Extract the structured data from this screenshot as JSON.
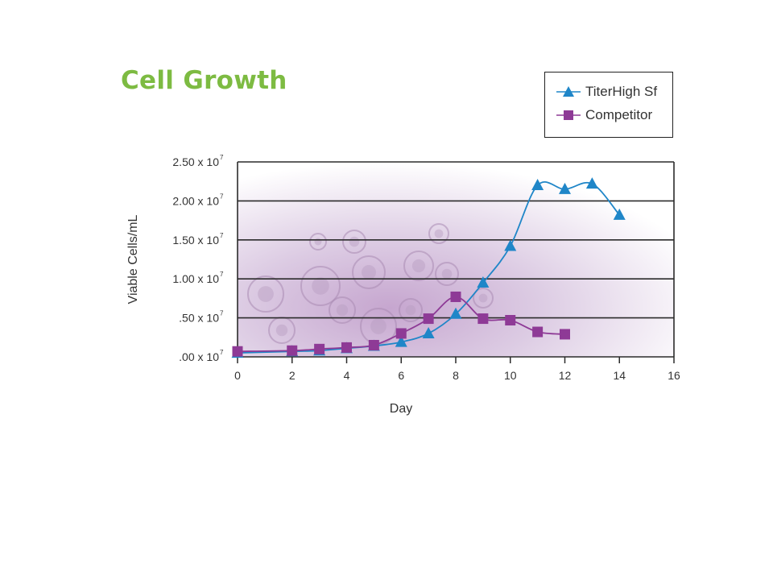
{
  "chart_data": {
    "type": "line",
    "title": "Cell Growth",
    "xlabel": "Day",
    "ylabel": "Viable Cells/mL",
    "xlim": [
      0,
      16
    ],
    "ylim": [
      0,
      2.5
    ],
    "x_ticks": [
      0,
      2,
      4,
      6,
      8,
      10,
      12,
      14,
      16
    ],
    "y_ticks": [
      0,
      0.5,
      1.0,
      1.5,
      2.0,
      2.5
    ],
    "y_tick_labels": [
      ".00 x 10",
      ".50 x 10",
      "1.00 x 10",
      "1.50 x 10",
      "2.00 x 10",
      "2.50 x 10"
    ],
    "y_tick_exponent": "7",
    "grid": "horizontal",
    "legend_position": "top-right",
    "series": [
      {
        "name": "TiterHigh Sf",
        "marker": "triangle",
        "color": "#1f86c8",
        "x": [
          0,
          2,
          3,
          4,
          5,
          6,
          7,
          8,
          9,
          10,
          11,
          12,
          13,
          14
        ],
        "y": [
          0.05,
          0.07,
          0.08,
          0.11,
          0.14,
          0.19,
          0.3,
          0.55,
          0.95,
          1.42,
          2.2,
          2.15,
          2.22,
          1.82
        ]
      },
      {
        "name": "Competitor",
        "marker": "square",
        "color": "#8e3a96",
        "x": [
          0,
          2,
          3,
          4,
          5,
          6,
          7,
          8,
          9,
          10,
          11,
          12
        ],
        "y": [
          0.07,
          0.08,
          0.1,
          0.12,
          0.15,
          0.3,
          0.49,
          0.77,
          0.49,
          0.47,
          0.32,
          0.29
        ]
      }
    ]
  },
  "legend": {
    "items": [
      {
        "label": "TiterHigh Sf"
      },
      {
        "label": "Competitor"
      }
    ]
  }
}
